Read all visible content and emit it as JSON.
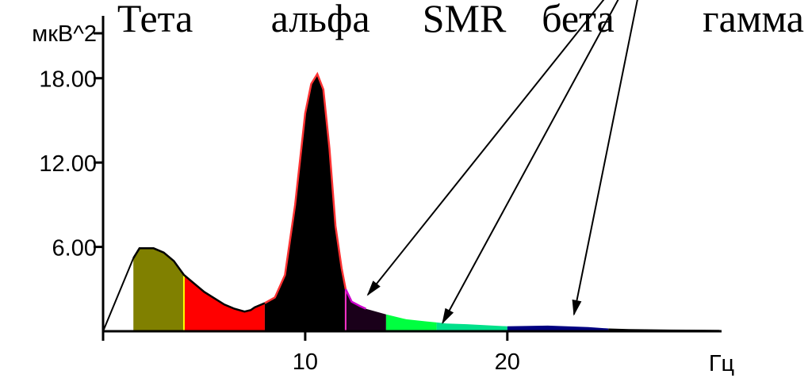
{
  "chart_data": {
    "type": "area",
    "title": "",
    "xlabel": "Гц",
    "ylabel": "мкВ^2",
    "xlim": [
      0,
      30.6
    ],
    "ylim": [
      0,
      23
    ],
    "x_ticks": [
      {
        "value": 10,
        "label": "10"
      },
      {
        "value": 20,
        "label": "20"
      }
    ],
    "y_ticks": [
      {
        "value": 6,
        "label": "6.00"
      },
      {
        "value": 12,
        "label": "12.00"
      },
      {
        "value": 18,
        "label": "18.00"
      }
    ],
    "grid": false,
    "legend": "none",
    "series": [
      {
        "x": [
          0,
          1.5,
          1.8,
          2.5,
          3.0,
          3.5,
          4.0,
          5.0,
          6.0,
          6.5,
          7.0,
          7.3,
          7.5,
          8.0,
          8.5,
          9.0,
          9.5,
          10.0,
          10.3,
          10.6,
          10.9,
          11.2,
          11.5,
          11.8,
          12.0,
          12.3,
          12.7,
          13.0,
          14.0,
          15.0,
          16.0,
          17.0,
          18.0,
          20.0,
          22.0,
          24.0,
          25.0,
          26.0,
          28.0,
          30.5
        ],
        "y": [
          0,
          5.2,
          5.9,
          5.9,
          5.6,
          5.0,
          4.0,
          2.8,
          1.9,
          1.6,
          1.4,
          1.5,
          1.7,
          2.0,
          2.4,
          4.0,
          9.0,
          15.5,
          17.6,
          18.3,
          17.2,
          13.0,
          7.5,
          4.5,
          3.0,
          2.1,
          1.8,
          1.6,
          1.2,
          0.85,
          0.7,
          0.55,
          0.5,
          0.35,
          0.4,
          0.3,
          0.2,
          0.15,
          0.12,
          0.1
        ]
      }
    ],
    "bands": [
      {
        "from": 1.5,
        "to": 4.0,
        "color": "#808000"
      },
      {
        "from": 4.0,
        "to": 8.0,
        "color": "#ff0000"
      },
      {
        "from": 8.0,
        "to": 12.0,
        "color": "#000000"
      },
      {
        "from": 12.0,
        "to": 14.0,
        "color": "#1a001a"
      },
      {
        "from": 14.0,
        "to": 16.5,
        "color": "#00ff40"
      },
      {
        "from": 16.5,
        "to": 20.0,
        "color": "#00e08a"
      },
      {
        "from": 20.0,
        "to": 25.0,
        "color": "#000080"
      },
      {
        "from": 25.0,
        "to": 30.5,
        "color": "#000000"
      }
    ],
    "band_edges": [
      {
        "x": 4.0,
        "color": "#ffff00"
      },
      {
        "x": 12.0,
        "color": "#ff33cc"
      }
    ],
    "curve_outline": [
      {
        "from": 1.5,
        "to": 8.0,
        "color": "#000000"
      },
      {
        "from": 8.0,
        "to": 12.0,
        "color": "#ff3333"
      },
      {
        "from": 12.0,
        "to": 13.0,
        "color": "#cc00cc"
      }
    ],
    "annotations": [
      {
        "text": "Тета",
        "x": 0.7,
        "y": 21.3
      },
      {
        "text": "альфа",
        "x": 8.3,
        "y": 21.3
      },
      {
        "text": "SMR",
        "x": 15.8,
        "y": 21.3
      },
      {
        "text": "бета",
        "x": 21.7,
        "y": 21.3
      },
      {
        "text": "гамма",
        "x": 28.0,
        "y": 21.3
      }
    ],
    "arrows": {
      "origin": {
        "x": 27.0,
        "y": 27.6
      },
      "targets": [
        {
          "x": 2.3,
          "y": 24.5
        },
        {
          "x": 11.2,
          "y": 24.5
        },
        {
          "x": 13.1,
          "y": 2.6
        },
        {
          "x": 16.8,
          "y": 0.6
        },
        {
          "x": 23.3,
          "y": 1.2
        }
      ]
    }
  }
}
